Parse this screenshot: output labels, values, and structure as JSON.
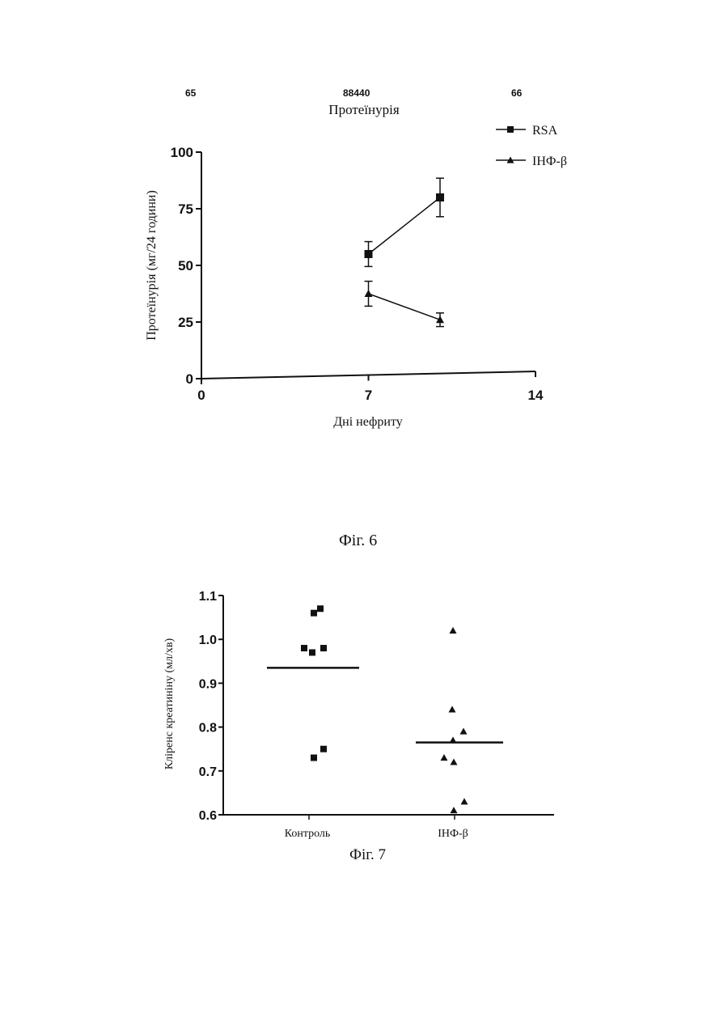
{
  "header": {
    "left_page": "65",
    "doc_number": "88440",
    "right_page": "66"
  },
  "chart_data": [
    {
      "type": "line",
      "title": "Протеїнурія",
      "xlabel": "Дні нефриту",
      "ylabel": "Протеїнурія (мг/24 години)",
      "xlim": [
        0,
        14
      ],
      "ylim": [
        0,
        100
      ],
      "xticks": [
        "0",
        "7",
        "14"
      ],
      "yticks": [
        "0",
        "25",
        "50",
        "75",
        "100"
      ],
      "legend_position": "top-right",
      "series": [
        {
          "name": "RSA",
          "marker": "square",
          "x": [
            7,
            10
          ],
          "y": [
            55,
            80
          ],
          "err": [
            5.5,
            8.5
          ]
        },
        {
          "name": "ІНФ-β",
          "marker": "triangle",
          "x": [
            7,
            10
          ],
          "y": [
            37.5,
            26
          ],
          "err": [
            5.5,
            3
          ]
        }
      ],
      "caption": "Фіг. 6"
    },
    {
      "type": "scatter",
      "ylabel": "Кліренс креатиніну (мл/хв)",
      "ylim": [
        0.6,
        1.1
      ],
      "yticks": [
        "0.6",
        "0.7",
        "0.8",
        "0.9",
        "1.0",
        "1.1"
      ],
      "categories": [
        "Контроль",
        "ІНФ-β"
      ],
      "series": [
        {
          "category": "Контроль",
          "marker": "square",
          "values": [
            1.07,
            1.06,
            0.98,
            0.98,
            0.97,
            0.75,
            0.73
          ],
          "mean": 0.935
        },
        {
          "category": "ІНФ-β",
          "marker": "triangle",
          "values": [
            1.02,
            0.84,
            0.79,
            0.77,
            0.73,
            0.72,
            0.63,
            0.61
          ],
          "mean": 0.765
        }
      ],
      "caption": "Фіг. 7"
    }
  ]
}
